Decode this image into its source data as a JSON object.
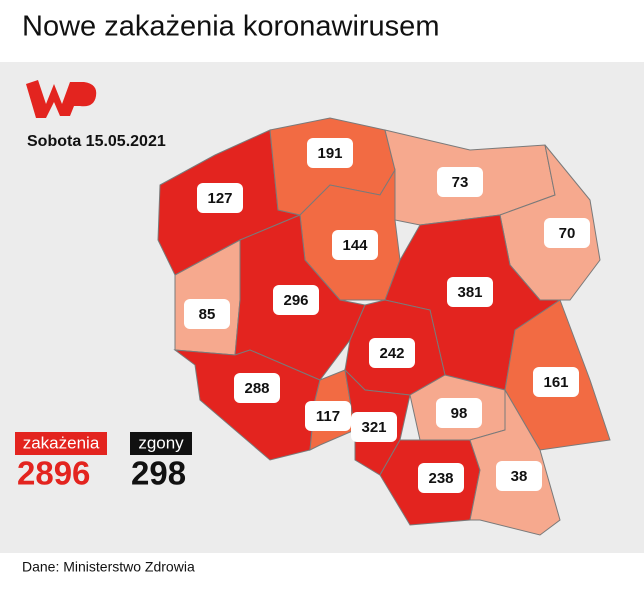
{
  "header": {
    "title": "Nowe zakażenia koronawirusem"
  },
  "date": "Sobota 15.05.2021",
  "regions": [
    {
      "value": 127,
      "color": "#e3241f"
    },
    {
      "value": 191,
      "color": "#f26b43"
    },
    {
      "value": 73,
      "color": "#f6a98e"
    },
    {
      "value": 70,
      "color": "#f6a98e"
    },
    {
      "value": 144,
      "color": "#f26b43"
    },
    {
      "value": 85,
      "color": "#f6a98e"
    },
    {
      "value": 296,
      "color": "#e3241f"
    },
    {
      "value": 381,
      "color": "#e3241f"
    },
    {
      "value": 242,
      "color": "#e3241f"
    },
    {
      "value": 161,
      "color": "#f26b43"
    },
    {
      "value": 288,
      "color": "#e3241f"
    },
    {
      "value": 117,
      "color": "#f26b43"
    },
    {
      "value": 321,
      "color": "#e3241f"
    },
    {
      "value": 98,
      "color": "#f6a98e"
    },
    {
      "value": 238,
      "color": "#e3241f"
    },
    {
      "value": 38,
      "color": "#f6a98e"
    }
  ],
  "summary": {
    "cases_label": "zakażenia",
    "cases": 2896,
    "deaths_label": "zgony",
    "deaths": 298
  },
  "source": "Dane: Ministerstwo Zdrowia"
}
